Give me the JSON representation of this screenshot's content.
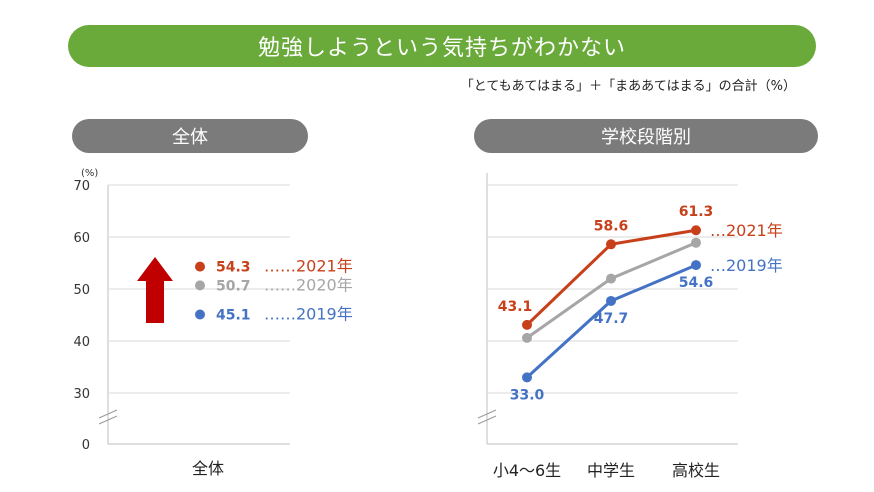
{
  "header": {
    "title": "勉強しようという気持ちがわかない",
    "subtitle": "「とてもあてはまる」＋「まああてはまる」の合計（%）"
  },
  "panels": {
    "left_title": "全体",
    "right_title": "学校段階別"
  },
  "colors": {
    "banner": "#6aaa3a",
    "pill": "#7b7b7b",
    "y2021": "#c8401a",
    "y2020": "#a6a6a6",
    "y2019": "#4472c4"
  },
  "chart_data": [
    {
      "type": "scatter",
      "panel": "全体",
      "categories": [
        "全体"
      ],
      "yunit": "(%)",
      "yticks": [
        0,
        30,
        40,
        50,
        60,
        70
      ],
      "ylim": [
        30,
        70
      ],
      "axis_break": true,
      "series": [
        {
          "name": "2021年",
          "key": "y2021",
          "values": [
            54.3
          ],
          "value_labels": [
            "54.3"
          ]
        },
        {
          "name": "2020年",
          "key": "y2020",
          "values": [
            50.7
          ],
          "value_labels": [
            "50.7"
          ]
        },
        {
          "name": "2019年",
          "key": "y2019",
          "values": [
            45.1
          ],
          "value_labels": [
            "45.1"
          ]
        }
      ],
      "legend_leader": "……",
      "annotation": "red-up-arrow"
    },
    {
      "type": "line",
      "panel": "学校段階別",
      "categories": [
        "小4～6生",
        "中学生",
        "高校生"
      ],
      "ylim": [
        30,
        70
      ],
      "axis_break": true,
      "series": [
        {
          "name": "2021年",
          "key": "y2021",
          "values": [
            43.1,
            58.6,
            61.3
          ],
          "value_labels": [
            "43.1",
            "58.6",
            "61.3"
          ]
        },
        {
          "name": "",
          "key": "y2020",
          "values": [
            40.6,
            52.0,
            58.9
          ],
          "value_labels": []
        },
        {
          "name": "2019年",
          "key": "y2019",
          "values": [
            33.0,
            47.7,
            54.6
          ],
          "value_labels": [
            "33.0",
            "47.7",
            "54.6"
          ]
        }
      ],
      "legend_leader": "…"
    }
  ]
}
